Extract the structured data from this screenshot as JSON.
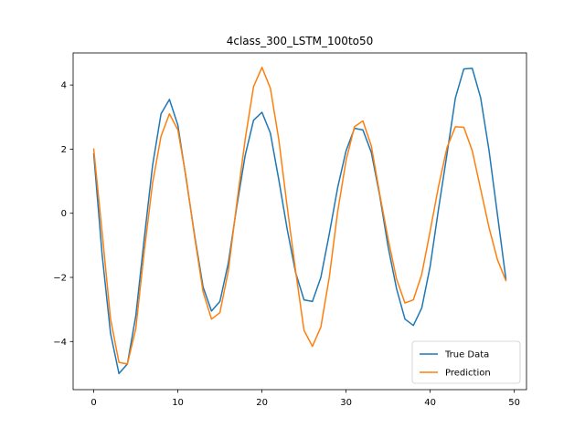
{
  "chart_data": {
    "type": "line",
    "title": "4class_300_LSTM_100to50",
    "xlabel": "",
    "ylabel": "",
    "xlim": [
      -2.45,
      51.45
    ],
    "ylim": [
      -5.5,
      5.0
    ],
    "xticks": [
      0,
      10,
      20,
      30,
      40,
      50
    ],
    "yticks": [
      -4,
      -2,
      0,
      2,
      4
    ],
    "grid": false,
    "legend_position": "lower-right",
    "series": [
      {
        "name": "True Data",
        "color": "#1f77b4",
        "values": [
          1.85,
          -1.3,
          -3.75,
          -5.0,
          -4.7,
          -3.2,
          -0.8,
          1.5,
          3.1,
          3.55,
          2.75,
          1.05,
          -0.7,
          -2.3,
          -3.05,
          -2.75,
          -1.55,
          0.2,
          1.8,
          2.9,
          3.15,
          2.5,
          1.05,
          -0.5,
          -1.85,
          -2.7,
          -2.75,
          -2.0,
          -0.65,
          0.8,
          1.95,
          2.65,
          2.6,
          1.9,
          0.55,
          -1.05,
          -2.35,
          -3.3,
          -3.5,
          -2.95,
          -1.65,
          0.15,
          1.85,
          3.6,
          4.5,
          4.52,
          3.6,
          1.95,
          -0.05,
          -2.05
        ]
      },
      {
        "name": "Prediction",
        "color": "#ff7f0e",
        "values": [
          2.0,
          -0.6,
          -3.3,
          -4.65,
          -4.7,
          -3.6,
          -1.2,
          0.95,
          2.4,
          3.1,
          2.6,
          1.1,
          -0.75,
          -2.45,
          -3.3,
          -3.1,
          -1.8,
          0.3,
          2.3,
          3.95,
          4.55,
          3.9,
          2.3,
          0.2,
          -1.8,
          -3.65,
          -4.15,
          -3.55,
          -2.0,
          0.05,
          1.65,
          2.7,
          2.88,
          2.1,
          0.6,
          -0.8,
          -2.05,
          -2.8,
          -2.7,
          -1.9,
          -0.55,
          0.85,
          2.05,
          2.7,
          2.68,
          1.95,
          0.75,
          -0.45,
          -1.45,
          -2.1
        ]
      }
    ]
  }
}
